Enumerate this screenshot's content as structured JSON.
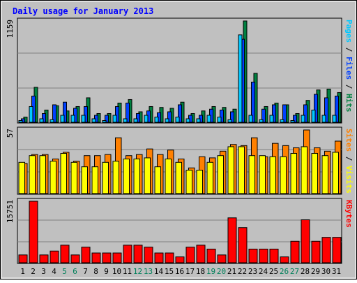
{
  "title": "Daily usage for January 2013",
  "chart_data": [
    {
      "type": "bar",
      "panel": "top",
      "ytick_max_label": "1159",
      "right_labels": [
        {
          "text": "Pages",
          "color": "#00c8ff"
        },
        {
          "text": "Files",
          "color": "#0040ff"
        },
        {
          "text": "Hits",
          "color": "#008040"
        }
      ],
      "series": [
        {
          "name": "Pages",
          "color": "#00c8ff",
          "values": [
            20,
            180,
            40,
            30,
            80,
            80,
            80,
            40,
            20,
            80,
            40,
            40,
            80,
            60,
            40,
            60,
            40,
            40,
            80,
            60,
            30,
            1000,
            80,
            30,
            80,
            30,
            20,
            80,
            140,
            80,
            80
          ]
        },
        {
          "name": "Files",
          "color": "#0040ff",
          "values": [
            40,
            300,
            100,
            200,
            230,
            160,
            180,
            80,
            80,
            180,
            220,
            100,
            130,
            110,
            120,
            200,
            80,
            80,
            150,
            140,
            120,
            950,
            460,
            150,
            200,
            200,
            80,
            200,
            320,
            280,
            300
          ]
        },
        {
          "name": "Hits",
          "color": "#008040",
          "values": [
            60,
            400,
            140,
            190,
            130,
            180,
            280,
            100,
            100,
            220,
            260,
            120,
            180,
            170,
            160,
            230,
            100,
            130,
            180,
            170,
            150,
            1159,
            560,
            180,
            220,
            200,
            100,
            250,
            370,
            380,
            340
          ]
        }
      ],
      "categories": [
        "1",
        "2",
        "3",
        "4",
        "5",
        "6",
        "7",
        "8",
        "9",
        "10",
        "11",
        "12",
        "13",
        "14",
        "15",
        "16",
        "17",
        "18",
        "19",
        "20",
        "21",
        "22",
        "23",
        "24",
        "25",
        "26",
        "27",
        "28",
        "29",
        "30",
        "31"
      ],
      "ylim": [
        0,
        1159
      ]
    },
    {
      "type": "bar",
      "panel": "middle",
      "ytick_max_label": "57",
      "right_labels": [
        {
          "text": "Sites",
          "color": "#ff8000"
        },
        {
          "text": "Visits",
          "color": "#ffff00"
        }
      ],
      "series": [
        {
          "name": "Visits",
          "color": "#ffff00",
          "values": [
            28,
            34,
            34,
            29,
            36,
            28,
            24,
            24,
            28,
            29,
            31,
            31,
            32,
            24,
            31,
            28,
            21,
            21,
            28,
            34,
            42,
            42,
            34,
            34,
            33,
            33,
            36,
            42,
            36,
            34,
            37
          ]
        },
        {
          "name": "Sites",
          "color": "#ff8000",
          "values": [
            27,
            35,
            35,
            31,
            37,
            29,
            34,
            34,
            35,
            50,
            34,
            35,
            40,
            35,
            39,
            31,
            23,
            33,
            32,
            38,
            44,
            43,
            50,
            33,
            45,
            43,
            41,
            57,
            41,
            38,
            47
          ]
        }
      ],
      "categories": [
        "1",
        "2",
        "3",
        "4",
        "5",
        "6",
        "7",
        "8",
        "9",
        "10",
        "11",
        "12",
        "13",
        "14",
        "15",
        "16",
        "17",
        "18",
        "19",
        "20",
        "21",
        "22",
        "23",
        "24",
        "25",
        "26",
        "27",
        "28",
        "29",
        "30",
        "31"
      ],
      "ylim": [
        0,
        57
      ]
    },
    {
      "type": "bar",
      "panel": "bottom",
      "ytick_max_label": "15751",
      "right_labels": [
        {
          "text": "KBytes",
          "color": "#ff0000"
        }
      ],
      "series": [
        {
          "name": "KBytes",
          "color": "#ff0000",
          "values": [
            2000,
            15751,
            2000,
            3000,
            4500,
            2000,
            4000,
            2500,
            2500,
            2500,
            4500,
            4500,
            4000,
            2500,
            2500,
            1500,
            4000,
            4500,
            3500,
            2000,
            11500,
            9000,
            3500,
            3500,
            3500,
            1500,
            5500,
            11000,
            5500,
            6500,
            6500
          ]
        }
      ],
      "categories": [
        "1",
        "2",
        "3",
        "4",
        "5",
        "6",
        "7",
        "8",
        "9",
        "10",
        "11",
        "12",
        "13",
        "14",
        "15",
        "16",
        "17",
        "18",
        "19",
        "20",
        "21",
        "22",
        "23",
        "24",
        "25",
        "26",
        "27",
        "28",
        "29",
        "30",
        "31"
      ],
      "ylim": [
        0,
        15751
      ]
    }
  ],
  "x_labels": [
    {
      "text": "1",
      "color": "#000000"
    },
    {
      "text": "2",
      "color": "#000000"
    },
    {
      "text": "3",
      "color": "#000000"
    },
    {
      "text": "4",
      "color": "#000000"
    },
    {
      "text": "5",
      "color": "#00805a"
    },
    {
      "text": "6",
      "color": "#00805a"
    },
    {
      "text": "7",
      "color": "#000000"
    },
    {
      "text": "8",
      "color": "#000000"
    },
    {
      "text": "9",
      "color": "#000000"
    },
    {
      "text": "10",
      "color": "#000000"
    },
    {
      "text": "11",
      "color": "#000000"
    },
    {
      "text": "12",
      "color": "#00805a"
    },
    {
      "text": "13",
      "color": "#00805a"
    },
    {
      "text": "14",
      "color": "#000000"
    },
    {
      "text": "15",
      "color": "#000000"
    },
    {
      "text": "16",
      "color": "#000000"
    },
    {
      "text": "17",
      "color": "#000000"
    },
    {
      "text": "18",
      "color": "#000000"
    },
    {
      "text": "19",
      "color": "#00805a"
    },
    {
      "text": "20",
      "color": "#00805a"
    },
    {
      "text": "21",
      "color": "#000000"
    },
    {
      "text": "22",
      "color": "#000000"
    },
    {
      "text": "23",
      "color": "#000000"
    },
    {
      "text": "24",
      "color": "#000000"
    },
    {
      "text": "25",
      "color": "#000000"
    },
    {
      "text": "26",
      "color": "#00805a"
    },
    {
      "text": "27",
      "color": "#00805a"
    },
    {
      "text": "28",
      "color": "#000000"
    },
    {
      "text": "29",
      "color": "#000000"
    },
    {
      "text": "30",
      "color": "#000000"
    },
    {
      "text": "31",
      "color": "#000000"
    }
  ],
  "colors": {
    "background": "#c0c0c0",
    "panel": "#c0c0c0",
    "title": "#0000ff",
    "grid": "#808080"
  }
}
